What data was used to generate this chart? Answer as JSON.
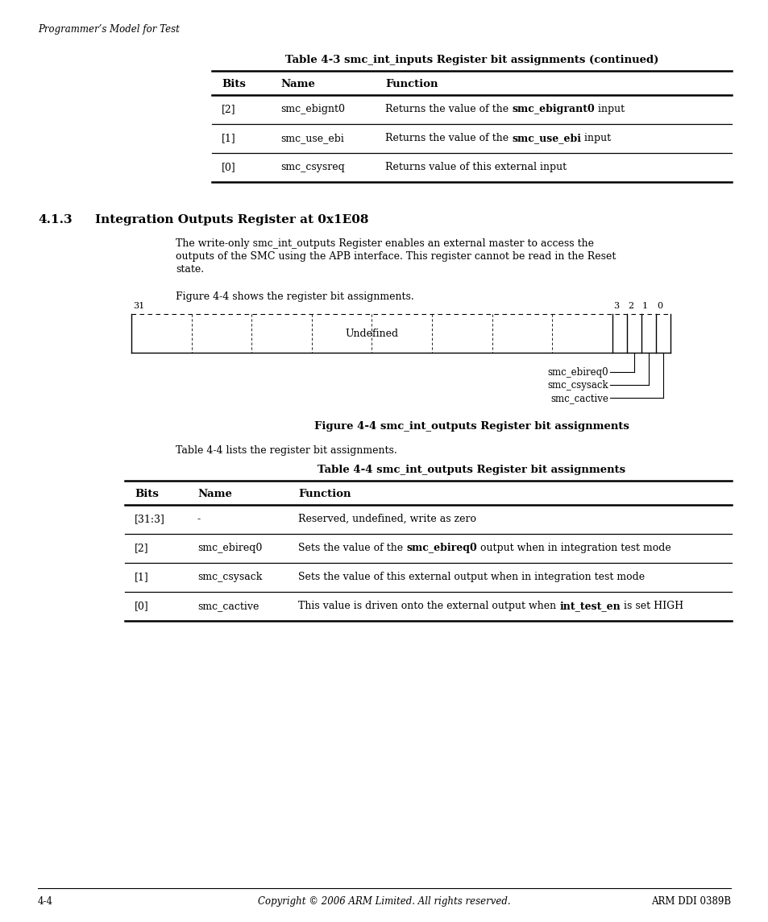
{
  "page_header": "Programmer’s Model for Test",
  "table3_title": "Table 4-3 smc_int_inputs Register bit assignments (continued)",
  "table3_headers": [
    "Bits",
    "Name",
    "Function"
  ],
  "table3_rows": [
    {
      "bits": "[2]",
      "name": "smc_ebignt0",
      "func_plain1": "Returns the value of the ",
      "func_bold": "smc_ebigrant0",
      "func_plain2": " input"
    },
    {
      "bits": "[1]",
      "name": "smc_use_ebi",
      "func_plain1": "Returns the value of the ",
      "func_bold": "smc_use_ebi",
      "func_plain2": " input"
    },
    {
      "bits": "[0]",
      "name": "smc_csysreq",
      "func_plain1": "Returns value of this external input",
      "func_bold": "",
      "func_plain2": ""
    }
  ],
  "section_num": "4.1.3",
  "section_title": "Integration Outputs Register at 0x1E08",
  "para_lines": [
    "The write-only smc_int_outputs Register enables an external master to access the",
    "outputs of the SMC using the APB interface. This register cannot be read in the Reset",
    "state."
  ],
  "fig_ref": "Figure 4-4 shows the register bit assignments.",
  "figure_caption": "Figure 4-4 smc_int_outputs Register bit assignments",
  "table4_ref": "Table 4-4 lists the register bit assignments.",
  "table4_title": "Table 4-4 smc_int_outputs Register bit assignments",
  "table4_headers": [
    "Bits",
    "Name",
    "Function"
  ],
  "table4_rows": [
    {
      "bits": "[31:3]",
      "name": "-",
      "func_plain1": "Reserved, undefined, write as zero",
      "func_bold": "",
      "func_plain2": ""
    },
    {
      "bits": "[2]",
      "name": "smc_ebireq0",
      "func_plain1": "Sets the value of the ",
      "func_bold": "smc_ebireq0",
      "func_plain2": " output when in integration test mode"
    },
    {
      "bits": "[1]",
      "name": "smc_csysack",
      "func_plain1": "Sets the value of this external output when in integration test mode",
      "func_bold": "",
      "func_plain2": ""
    },
    {
      "bits": "[0]",
      "name": "smc_cactive",
      "func_plain1": "This value is driven onto the external output when ",
      "func_bold": "int_test_en",
      "func_plain2": " is set HIGH"
    }
  ],
  "footer_left": "4-4",
  "footer_center": "Copyright © 2006 ARM Limited. All rights reserved.",
  "footer_right": "ARM DDI 0389B"
}
